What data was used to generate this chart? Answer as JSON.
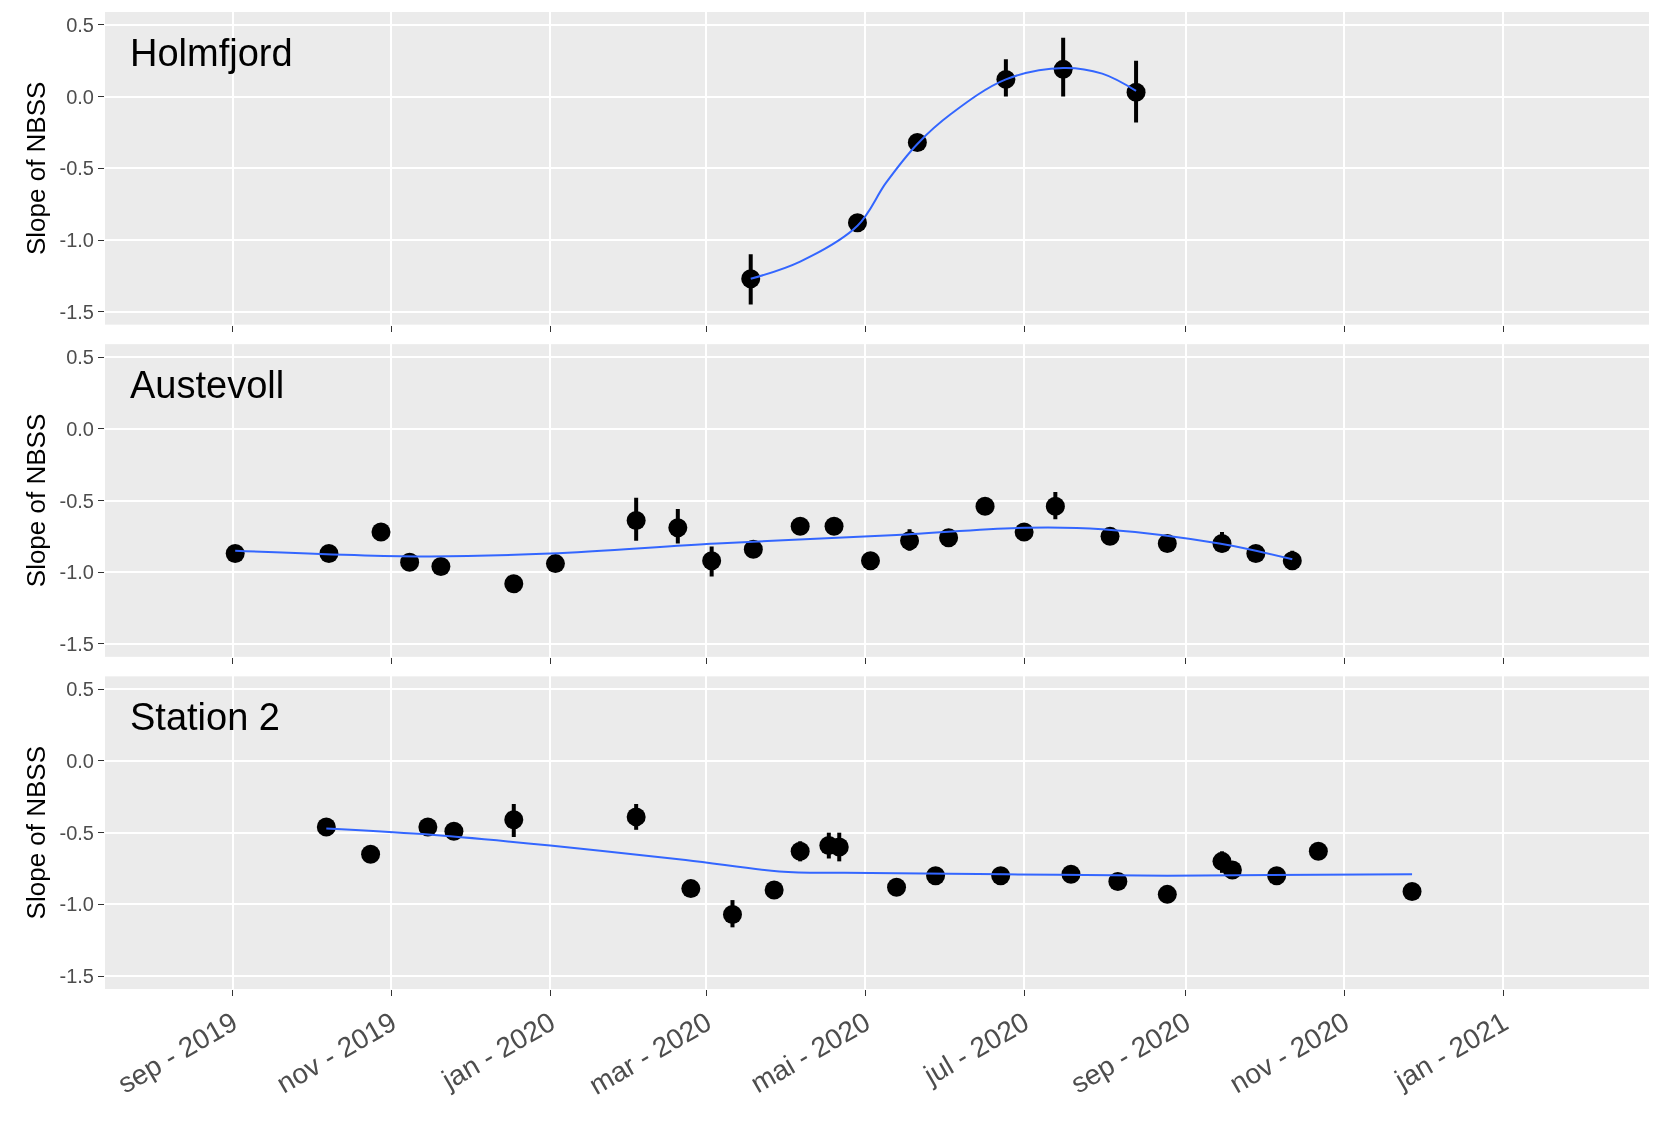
{
  "chart_data": [
    {
      "type": "scatter",
      "ylabel": "Slope of NBSS",
      "annotations": [
        "Holmfjord"
      ],
      "tick_labels": "y",
      "grid": true,
      "xlim": [
        "2019-07-14",
        "2021-02-26"
      ],
      "ylim": [
        -1.59,
        0.59
      ],
      "xticks": [
        {
          "value": "2019-09-01",
          "label": null
        },
        {
          "value": "2019-11-01",
          "label": null
        },
        {
          "value": "2020-01-01",
          "label": null
        },
        {
          "value": "2020-03-01",
          "label": null
        },
        {
          "value": "2020-05-01",
          "label": null
        },
        {
          "value": "2020-07-01",
          "label": null
        },
        {
          "value": "2020-09-01",
          "label": null
        },
        {
          "value": "2020-11-01",
          "label": null
        },
        {
          "value": "2021-01-01",
          "label": null
        }
      ],
      "yticks": [
        {
          "value": -1.5,
          "label": "-1.5"
        },
        {
          "value": -1,
          "label": "-1.0"
        },
        {
          "value": -0.5,
          "label": "-0.5"
        },
        {
          "value": 0,
          "label": "0.0"
        },
        {
          "value": 0.5,
          "label": "0.5"
        }
      ],
      "series": [
        {
          "marker": "circle",
          "color": "#000000",
          "x": [
            "2020-03-18",
            "2020-04-28",
            "2020-05-21",
            "2020-06-24",
            "2020-07-16",
            "2020-08-13"
          ],
          "values": [
            -1.27,
            -0.88,
            -0.32,
            0.12,
            0.19,
            0.03
          ],
          "errors": [
            [
              -1.45,
              -1.1
            ],
            null,
            null,
            [
              0.0,
              0.26
            ],
            [
              0.0,
              0.41
            ],
            [
              -0.18,
              0.25
            ]
          ]
        },
        {
          "type": "line",
          "color": "#3366ff",
          "x": [
            "2020-03-18",
            "2020-04-06",
            "2020-04-28",
            "2020-05-09",
            "2020-05-21",
            "2020-06-03",
            "2020-06-24",
            "2020-07-16",
            "2020-07-31",
            "2020-08-13"
          ],
          "values": [
            -1.27,
            -1.15,
            -0.9,
            -0.6,
            -0.33,
            -0.12,
            0.12,
            0.2,
            0.16,
            0.04
          ]
        }
      ]
    },
    {
      "type": "scatter",
      "ylabel": "Slope of NBSS",
      "annotations": [
        "Austevoll"
      ],
      "tick_labels": "y",
      "grid": true,
      "xlim": [
        "2019-07-14",
        "2021-02-26"
      ],
      "ylim": [
        -1.59,
        0.59
      ],
      "xticks": [
        {
          "value": "2019-09-01",
          "label": null
        },
        {
          "value": "2019-11-01",
          "label": null
        },
        {
          "value": "2020-01-01",
          "label": null
        },
        {
          "value": "2020-03-01",
          "label": null
        },
        {
          "value": "2020-05-01",
          "label": null
        },
        {
          "value": "2020-07-01",
          "label": null
        },
        {
          "value": "2020-09-01",
          "label": null
        },
        {
          "value": "2020-11-01",
          "label": null
        },
        {
          "value": "2021-01-01",
          "label": null
        }
      ],
      "yticks": [
        {
          "value": -1.5,
          "label": "-1.5"
        },
        {
          "value": -1,
          "label": "-1.0"
        },
        {
          "value": -0.5,
          "label": "-0.5"
        },
        {
          "value": 0,
          "label": "0.0"
        },
        {
          "value": 0.5,
          "label": "0.5"
        }
      ],
      "series": [
        {
          "marker": "circle",
          "color": "#000000",
          "x": [
            "2019-09-02",
            "2019-10-08",
            "2019-10-28",
            "2019-11-08",
            "2019-11-20",
            "2019-12-18",
            "2020-01-03",
            "2020-02-03",
            "2020-02-19",
            "2020-03-03",
            "2020-03-19",
            "2020-04-06",
            "2020-04-19",
            "2020-05-03",
            "2020-05-18",
            "2020-06-02",
            "2020-06-16",
            "2020-07-01",
            "2020-07-13",
            "2020-08-03",
            "2020-08-25",
            "2020-09-15",
            "2020-09-28",
            "2020-10-12"
          ],
          "values": [
            -0.87,
            -0.87,
            -0.72,
            -0.93,
            -0.96,
            -1.08,
            -0.94,
            -0.64,
            -0.69,
            -0.92,
            -0.84,
            -0.68,
            -0.68,
            -0.92,
            -0.78,
            -0.76,
            -0.54,
            -0.72,
            -0.54,
            -0.75,
            -0.8,
            -0.8,
            -0.87,
            -0.92
          ],
          "errors": [
            null,
            null,
            null,
            [
              -0.98,
              -0.87
            ],
            null,
            null,
            null,
            [
              -0.78,
              -0.48
            ],
            [
              -0.8,
              -0.56
            ],
            [
              -1.03,
              -0.82
            ],
            null,
            null,
            null,
            null,
            [
              -0.85,
              -0.7
            ],
            null,
            null,
            [
              -0.78,
              -0.66
            ],
            [
              -0.63,
              -0.44
            ],
            null,
            [
              -0.85,
              -0.75
            ],
            [
              -0.86,
              -0.72
            ],
            [
              -0.92,
              -0.82
            ],
            [
              -0.98,
              -0.85
            ]
          ]
        },
        {
          "type": "line",
          "color": "#3366ff",
          "x": [
            "2019-09-02",
            "2019-11-13",
            "2020-01-01",
            "2020-03-05",
            "2020-05-13",
            "2020-07-01",
            "2020-07-31",
            "2020-09-14",
            "2020-10-12"
          ],
          "values": [
            -0.85,
            -0.89,
            -0.87,
            -0.8,
            -0.74,
            -0.69,
            -0.7,
            -0.8,
            -0.91
          ]
        }
      ]
    },
    {
      "type": "scatter",
      "ylabel": "Slope of NBSS",
      "annotations": [
        "Station 2"
      ],
      "grid": true,
      "xlim": [
        "2019-07-14",
        "2021-02-26"
      ],
      "ylim": [
        -1.59,
        0.59
      ],
      "xticks": [
        {
          "value": "2019-09-01",
          "label": "sep - 2019"
        },
        {
          "value": "2019-11-01",
          "label": "nov - 2019"
        },
        {
          "value": "2020-01-01",
          "label": "jan - 2020"
        },
        {
          "value": "2020-03-01",
          "label": "mar - 2020"
        },
        {
          "value": "2020-05-01",
          "label": "mai - 2020"
        },
        {
          "value": "2020-07-01",
          "label": "jul - 2020"
        },
        {
          "value": "2020-09-01",
          "label": "sep - 2020"
        },
        {
          "value": "2020-11-01",
          "label": "nov - 2020"
        },
        {
          "value": "2021-01-01",
          "label": "jan - 2021"
        }
      ],
      "yticks": [
        {
          "value": -1.5,
          "label": "-1.5"
        },
        {
          "value": -1,
          "label": "-1.0"
        },
        {
          "value": -0.5,
          "label": "-0.5"
        },
        {
          "value": 0,
          "label": "0.0"
        },
        {
          "value": 0.5,
          "label": "0.5"
        }
      ],
      "series": [
        {
          "marker": "circle",
          "color": "#000000",
          "x": [
            "2019-10-07",
            "2019-10-24",
            "2019-11-15",
            "2019-11-25",
            "2019-12-18",
            "2020-02-03",
            "2020-02-24",
            "2020-03-11",
            "2020-03-27",
            "2020-04-06",
            "2020-04-17",
            "2020-04-21",
            "2020-05-13",
            "2020-05-28",
            "2020-06-22",
            "2020-07-19",
            "2020-08-06",
            "2020-08-25",
            "2020-09-15",
            "2020-09-19",
            "2020-10-06",
            "2020-10-22",
            "2020-11-27"
          ],
          "values": [
            -0.46,
            -0.65,
            -0.46,
            -0.49,
            -0.41,
            -0.39,
            -0.89,
            -1.07,
            -0.9,
            -0.63,
            -0.59,
            -0.6,
            -0.88,
            -0.8,
            -0.8,
            -0.79,
            -0.84,
            -0.93,
            -0.7,
            -0.76,
            -0.8,
            -0.63,
            -0.91
          ],
          "errors": [
            null,
            null,
            null,
            null,
            [
              -0.53,
              -0.3
            ],
            [
              -0.48,
              -0.3
            ],
            null,
            [
              -1.16,
              -0.97
            ],
            null,
            [
              -0.7,
              -0.56
            ],
            [
              -0.68,
              -0.5
            ],
            [
              -0.7,
              -0.5
            ],
            [
              -0.94,
              -0.82
            ],
            null,
            null,
            [
              -0.84,
              -0.74
            ],
            null,
            null,
            [
              -0.78,
              -0.63
            ],
            null,
            null,
            null,
            null
          ]
        },
        {
          "type": "line",
          "color": "#3366ff",
          "x": [
            "2019-10-07",
            "2019-11-13",
            "2020-01-01",
            "2020-02-22",
            "2020-03-29",
            "2020-04-23",
            "2020-06-24",
            "2020-08-25",
            "2020-11-27"
          ],
          "values": [
            -0.47,
            -0.51,
            -0.59,
            -0.69,
            -0.77,
            -0.78,
            -0.79,
            -0.8,
            -0.79
          ]
        }
      ]
    }
  ]
}
